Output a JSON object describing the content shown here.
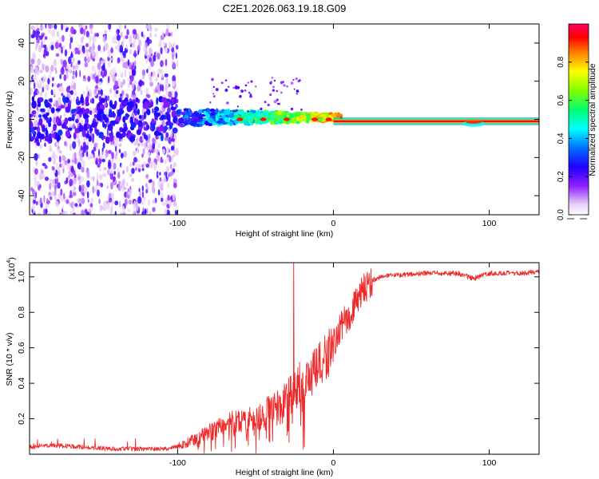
{
  "title": "C2E1.2026.063.19.18.G09",
  "colors": {
    "snr_line": "#ee2a2a",
    "colormap": [
      "#ffffff",
      "#dcb4f0",
      "#8000ff",
      "#0000ff",
      "#00e5ff",
      "#00ff60",
      "#ffff00",
      "#ff8000",
      "#ff0000",
      "#ff0060"
    ]
  },
  "chart_data": [
    {
      "type": "heatmap",
      "name": "spectrogram",
      "title": "C2E1.2026.063.19.18.G09",
      "xlabel": "Height of straight line (km)",
      "ylabel": "Frequency (Hz)",
      "xlim": [
        -195,
        132
      ],
      "ylim": [
        -50,
        50
      ],
      "xticks": [
        -100,
        0,
        100
      ],
      "xtick_labels": [
        "-100",
        "0",
        "100"
      ],
      "yticks": [
        -40,
        -20,
        0,
        20,
        40
      ],
      "ytick_labels": [
        "-40",
        "-20",
        "0",
        "20",
        "40"
      ],
      "colorbar": {
        "label": "Normalized spectral amplitude",
        "range": [
          0,
          1
        ],
        "ticks": [
          0.0,
          0.2,
          0.4,
          0.6,
          0.8
        ],
        "tick_labels": [
          "0.0",
          "0.2",
          "0.4",
          "0.6",
          "0.8"
        ]
      },
      "features": [
        {
          "description": "scattered low-amplitude noise",
          "x_range": [
            -195,
            -100
          ],
          "freq_range": [
            -50,
            50
          ],
          "amplitude": 0.1
        },
        {
          "description": "signal band emerging",
          "x_range": [
            -100,
            0
          ],
          "freq_range": [
            -5,
            5
          ],
          "amplitude": [
            0.2,
            0.9
          ]
        },
        {
          "description": "strong narrow carrier line",
          "x_range": [
            0,
            132
          ],
          "freq_center": -1,
          "amplitude": 1.0
        }
      ]
    },
    {
      "type": "line",
      "name": "snr",
      "title": "",
      "xlabel": "Height of straight line (km)",
      "ylabel": "SNR (10 * v/v)",
      "y_multiplier": "(x10",
      "y_multiplier_exp": "4",
      "y_multiplier_close": ")",
      "xlim": [
        -195,
        132
      ],
      "ylim": [
        0,
        1.08
      ],
      "xticks": [
        -100,
        0,
        100
      ],
      "xtick_labels": [
        "-100",
        "0",
        "100"
      ],
      "yticks": [
        0.2,
        0.4,
        0.6,
        0.8,
        1.0
      ],
      "ytick_labels": [
        "0.2",
        "0.4",
        "0.6",
        "0.8",
        "1.0"
      ],
      "series": [
        {
          "name": "SNR",
          "x": [
            -195,
            -180,
            -160,
            -140,
            -120,
            -105,
            -95,
            -85,
            -75,
            -65,
            -55,
            -45,
            -35,
            -25,
            -22,
            -18,
            -10,
            -5,
            0,
            5,
            10,
            15,
            20,
            25,
            30,
            40,
            60,
            80,
            90,
            100,
            120,
            132
          ],
          "y": [
            0.04,
            0.05,
            0.04,
            0.03,
            0.03,
            0.03,
            0.06,
            0.1,
            0.15,
            0.18,
            0.2,
            0.22,
            0.28,
            0.35,
            0.4,
            0.42,
            0.48,
            0.55,
            0.62,
            0.72,
            0.78,
            0.86,
            0.94,
            0.98,
            1.0,
            1.01,
            1.02,
            1.02,
            0.99,
            1.02,
            1.02,
            1.03
          ]
        }
      ]
    }
  ]
}
